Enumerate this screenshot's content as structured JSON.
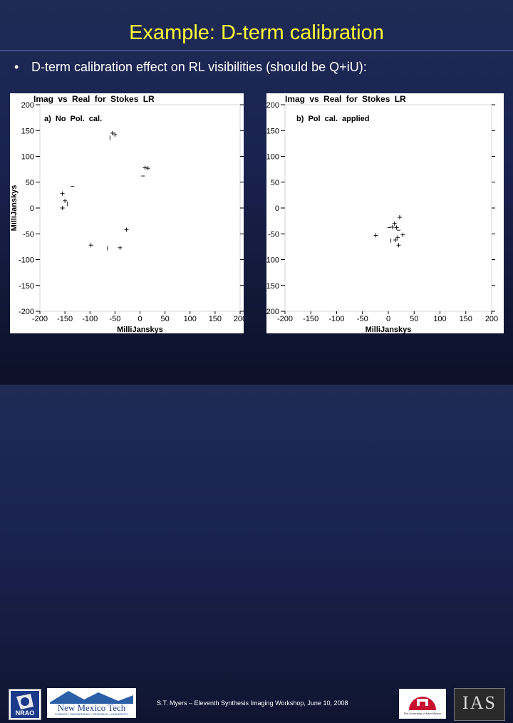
{
  "slide": {
    "title": "Example: D-term calibration",
    "bullet": "D-term calibration effect on RL visibilities (should be Q+iU):"
  },
  "chart_data": [
    {
      "type": "scatter",
      "title": "Imag vs Real for Stokes LR",
      "annotation": "a) No Pol. cal.",
      "xlabel": "MilliJanskys",
      "ylabel": "MilliJanskys",
      "xlim": [
        -200,
        200
      ],
      "ylim": [
        -200,
        200
      ],
      "xticks": [
        "-200",
        "-150",
        "-100",
        "-50",
        "0",
        "50",
        "100",
        "150",
        "200"
      ],
      "yticks": [
        "200",
        "150",
        "100",
        "50",
        "0",
        "-50",
        "-100",
        "-150",
        "-200"
      ],
      "grid": false,
      "points": [
        {
          "x": -55,
          "y": 145,
          "m": "+"
        },
        {
          "x": -50,
          "y": 142,
          "m": "+"
        },
        {
          "x": -60,
          "y": 136,
          "m": "|"
        },
        {
          "x": 10,
          "y": 78,
          "m": "+"
        },
        {
          "x": 16,
          "y": 77,
          "m": "+"
        },
        {
          "x": 6,
          "y": 62,
          "m": "-"
        },
        {
          "x": -135,
          "y": 42,
          "m": "-"
        },
        {
          "x": -155,
          "y": 28,
          "m": "+"
        },
        {
          "x": -150,
          "y": 14,
          "m": "+"
        },
        {
          "x": -145,
          "y": 8,
          "m": "|"
        },
        {
          "x": -155,
          "y": 0,
          "m": "+"
        },
        {
          "x": -27,
          "y": -42,
          "m": "+"
        },
        {
          "x": -98,
          "y": -72,
          "m": "+"
        },
        {
          "x": -65,
          "y": -78,
          "m": "|"
        },
        {
          "x": -40,
          "y": -77,
          "m": "+"
        }
      ]
    },
    {
      "type": "scatter",
      "title": "Imag vs Real for Stokes LR",
      "annotation": "b) Pol cal. applied",
      "xlabel": "MilliJanskys",
      "ylabel": "",
      "xlim": [
        -200,
        200
      ],
      "ylim": [
        -200,
        200
      ],
      "xticks": [
        "-200",
        "-150",
        "-100",
        "-50",
        "0",
        "50",
        "100",
        "150",
        "200"
      ],
      "yticks": [
        "200",
        "150",
        "100",
        "50",
        "0",
        "-50",
        "-100",
        "-150",
        "-200"
      ],
      "grid": false,
      "points": [
        {
          "x": 22,
          "y": -18,
          "m": "+"
        },
        {
          "x": 12,
          "y": -30,
          "m": "+"
        },
        {
          "x": 8,
          "y": -37,
          "m": "+"
        },
        {
          "x": 2,
          "y": -38,
          "m": "-"
        },
        {
          "x": 16,
          "y": -38,
          "m": "+"
        },
        {
          "x": 20,
          "y": -43,
          "m": "-"
        },
        {
          "x": 28,
          "y": -52,
          "m": "+"
        },
        {
          "x": -24,
          "y": -53,
          "m": "+"
        },
        {
          "x": 18,
          "y": -57,
          "m": "+"
        },
        {
          "x": 5,
          "y": -63,
          "m": "|"
        },
        {
          "x": 14,
          "y": -62,
          "m": "+"
        },
        {
          "x": 20,
          "y": -72,
          "m": "+"
        }
      ]
    }
  ],
  "footer": {
    "credit": "S.T. Myers – Eleventh Synthesis Imaging Workshop, June 10, 2008",
    "logos": {
      "nrao": {
        "text": "NRAO"
      },
      "nmt": {
        "name": "New Mexico Tech",
        "tagline": "SCIENCE • ENGINEERING • RESEARCH • UNIVERSITY"
      },
      "unm": {
        "text": "The University of New Mexico"
      },
      "ias": {
        "text": "IAS"
      }
    }
  }
}
